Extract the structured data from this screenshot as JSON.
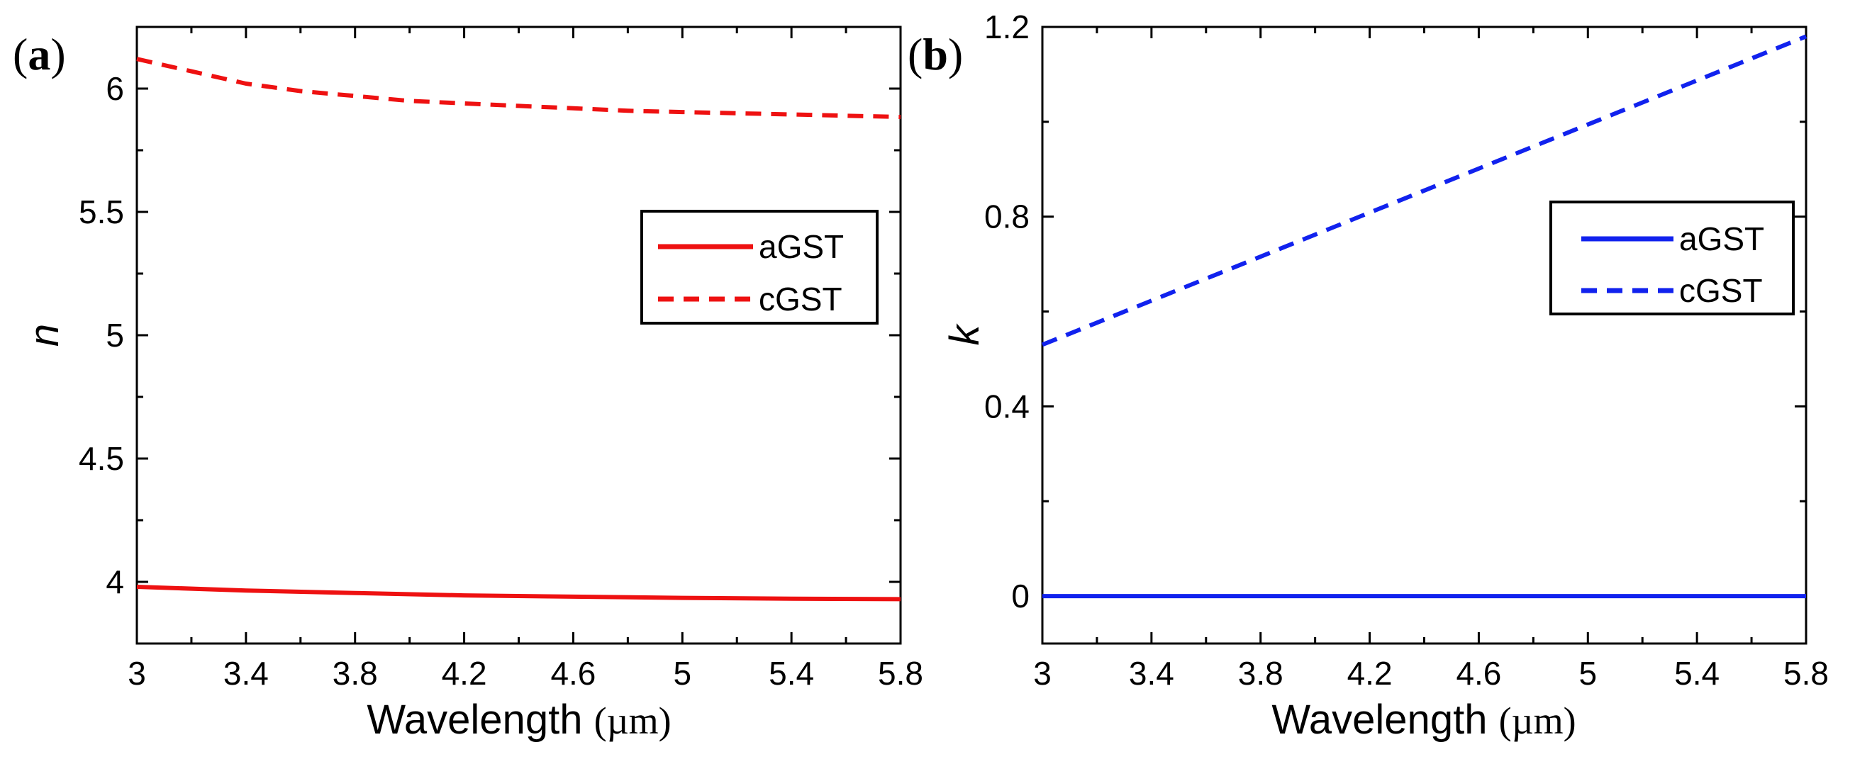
{
  "chart_data": [
    {
      "panel": "(a)",
      "panel_letter": "a",
      "type": "line",
      "xlabel": "Wavelength",
      "xunit": "(µm)",
      "ylabel": "n",
      "xlim": [
        3,
        5.8
      ],
      "ylim": [
        3.75,
        6.25
      ],
      "xticks": [
        3,
        3.4,
        3.8,
        4.2,
        4.6,
        5,
        5.4,
        5.8
      ],
      "xtick_labels": [
        "3",
        "3.4",
        "3.8",
        "4.2",
        "4.6",
        "5",
        "5.4",
        "5.8"
      ],
      "yticks": [
        4,
        4.5,
        5,
        5.5,
        6
      ],
      "ytick_labels": [
        "4",
        "4.5",
        "5",
        "5.5",
        "6"
      ],
      "legend_position": "right",
      "color": "#ee1111",
      "series": [
        {
          "name": "aGST",
          "style": "solid",
          "x": [
            3,
            3.4,
            3.8,
            4.2,
            4.6,
            5,
            5.4,
            5.8
          ],
          "y": [
            3.98,
            3.965,
            3.955,
            3.945,
            3.94,
            3.935,
            3.932,
            3.93
          ]
        },
        {
          "name": "cGST",
          "style": "dashed",
          "x": [
            3,
            3.2,
            3.4,
            3.6,
            3.8,
            4.0,
            4.2,
            4.4,
            4.6,
            4.8,
            5.0,
            5.2,
            5.4,
            5.6,
            5.8
          ],
          "y": [
            6.12,
            6.07,
            6.02,
            5.99,
            5.97,
            5.95,
            5.94,
            5.93,
            5.92,
            5.91,
            5.905,
            5.9,
            5.895,
            5.89,
            5.885
          ]
        }
      ]
    },
    {
      "panel": "(b)",
      "panel_letter": "b",
      "type": "line",
      "xlabel": "Wavelength",
      "xunit": "(µm)",
      "ylabel": "k",
      "xlim": [
        3,
        5.8
      ],
      "ylim": [
        -0.1,
        1.2
      ],
      "xticks": [
        3,
        3.4,
        3.8,
        4.2,
        4.6,
        5,
        5.4,
        5.8
      ],
      "xtick_labels": [
        "3",
        "3.4",
        "3.8",
        "4.2",
        "4.6",
        "5",
        "5.4",
        "5.8"
      ],
      "yticks": [
        0,
        0.4,
        0.8,
        1.2
      ],
      "ytick_labels": [
        "0",
        "0.4",
        "0.8",
        "1.2"
      ],
      "legend_position": "right",
      "color": "#1122ee",
      "series": [
        {
          "name": "aGST",
          "style": "solid",
          "x": [
            3,
            5.8
          ],
          "y": [
            0,
            0
          ]
        },
        {
          "name": "cGST",
          "style": "dashed",
          "x": [
            3,
            5.8
          ],
          "y": [
            0.53,
            1.18
          ]
        }
      ]
    }
  ]
}
